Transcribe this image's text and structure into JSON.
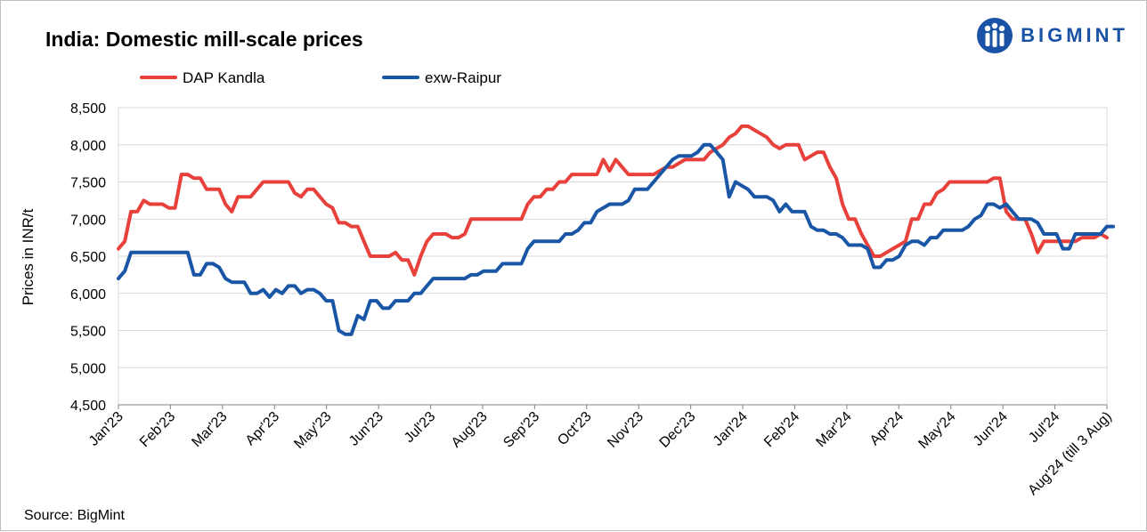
{
  "title": "India: Domestic mill-scale prices",
  "brand": {
    "name": "BIGMINT",
    "logo_icon": "bigmint-people-logo-icon",
    "color": "#1a53a6"
  },
  "source": "Source: BigMint",
  "chart_data": {
    "type": "line",
    "title": "India: Domestic mill-scale prices",
    "xlabel": "",
    "ylabel": "Prices in INR/t",
    "ylim": [
      4500,
      8500
    ],
    "yticks": [
      4500,
      5000,
      5500,
      6000,
      6500,
      7000,
      7500,
      8000,
      8500
    ],
    "y_tick_labels": [
      "4,500",
      "5,000",
      "5,500",
      "6,000",
      "6,500",
      "7,000",
      "7,500",
      "8,000",
      "8,500"
    ],
    "grid": true,
    "legend_position": "top",
    "x_tick_labels": [
      "Jan'23",
      "Feb'23",
      "Mar'23",
      "Apr'23",
      "May'23",
      "Jun'23",
      "Jul'23",
      "Aug'23",
      "Sep'23",
      "Oct'23",
      "Nov'23",
      "Dec'23",
      "Jan'24",
      "Feb'24",
      "Mar'24",
      "Apr'24",
      "May'24",
      "Jun'24",
      "Jul'24",
      "Aug'24 (till 3 Aug)"
    ],
    "series": [
      {
        "name": "DAP Kandla",
        "color": "#e8413c",
        "values": [
          6600,
          6700,
          7100,
          7100,
          7250,
          7200,
          7200,
          7200,
          7150,
          7150,
          7600,
          7600,
          7550,
          7550,
          7400,
          7400,
          7400,
          7200,
          7100,
          7300,
          7300,
          7300,
          7400,
          7500,
          7500,
          7500,
          7500,
          7500,
          7350,
          7300,
          7400,
          7400,
          7300,
          7200,
          7150,
          6950,
          6950,
          6900,
          6900,
          6700,
          6500,
          6500,
          6500,
          6500,
          6550,
          6450,
          6450,
          6250,
          6500,
          6700,
          6800,
          6800,
          6800,
          6750,
          6750,
          6800,
          7000,
          7000,
          7000,
          7000,
          7000,
          7000,
          7000,
          7000,
          7000,
          7200,
          7300,
          7300,
          7400,
          7400,
          7500,
          7500,
          7600,
          7600,
          7600,
          7600,
          7600,
          7800,
          7650,
          7800,
          7700,
          7600,
          7600,
          7600,
          7600,
          7600,
          7650,
          7700,
          7700,
          7750,
          7800,
          7800,
          7800,
          7800,
          7900,
          7950,
          8000,
          8100,
          8150,
          8250,
          8250,
          8200,
          8150,
          8100,
          8000,
          7950,
          8000,
          8000,
          8000,
          7800,
          7850,
          7900,
          7900,
          7700,
          7550,
          7200,
          7000,
          7000,
          6800,
          6650,
          6500,
          6500,
          6550,
          6600,
          6650,
          6700,
          7000,
          7000,
          7200,
          7200,
          7350,
          7400,
          7500,
          7500,
          7500,
          7500,
          7500,
          7500,
          7500,
          7550,
          7550,
          7100,
          7000,
          7000,
          7000,
          6800,
          6550,
          6700,
          6700,
          6700,
          6700,
          6700,
          6700,
          6750,
          6750,
          6750,
          6800,
          6750
        ]
      },
      {
        "name": "exw-Raipur",
        "color": "#1a56a6",
        "values": [
          6200,
          6300,
          6550,
          6550,
          6550,
          6550,
          6550,
          6550,
          6550,
          6550,
          6550,
          6550,
          6250,
          6250,
          6400,
          6400,
          6350,
          6200,
          6150,
          6150,
          6150,
          6000,
          6000,
          6050,
          5950,
          6050,
          6000,
          6100,
          6100,
          6000,
          6050,
          6050,
          6000,
          5900,
          5900,
          5500,
          5450,
          5450,
          5700,
          5650,
          5900,
          5900,
          5800,
          5800,
          5900,
          5900,
          5900,
          6000,
          6000,
          6100,
          6200,
          6200,
          6200,
          6200,
          6200,
          6200,
          6250,
          6250,
          6300,
          6300,
          6300,
          6400,
          6400,
          6400,
          6400,
          6600,
          6700,
          6700,
          6700,
          6700,
          6700,
          6800,
          6800,
          6850,
          6950,
          6950,
          7100,
          7150,
          7200,
          7200,
          7200,
          7250,
          7400,
          7400,
          7400,
          7500,
          7600,
          7700,
          7800,
          7850,
          7850,
          7850,
          7900,
          8000,
          8000,
          7900,
          7800,
          7300,
          7500,
          7450,
          7400,
          7300,
          7300,
          7300,
          7250,
          7100,
          7200,
          7100,
          7100,
          7100,
          6900,
          6850,
          6850,
          6800,
          6800,
          6750,
          6650,
          6650,
          6650,
          6600,
          6350,
          6350,
          6450,
          6450,
          6500,
          6650,
          6700,
          6700,
          6650,
          6750,
          6750,
          6850,
          6850,
          6850,
          6850,
          6900,
          7000,
          7050,
          7200,
          7200,
          7150,
          7200,
          7100,
          7000,
          7000,
          7000,
          6950,
          6800,
          6800,
          6800,
          6600,
          6600,
          6800,
          6800,
          6800,
          6800,
          6800,
          6900,
          6900
        ]
      }
    ]
  }
}
